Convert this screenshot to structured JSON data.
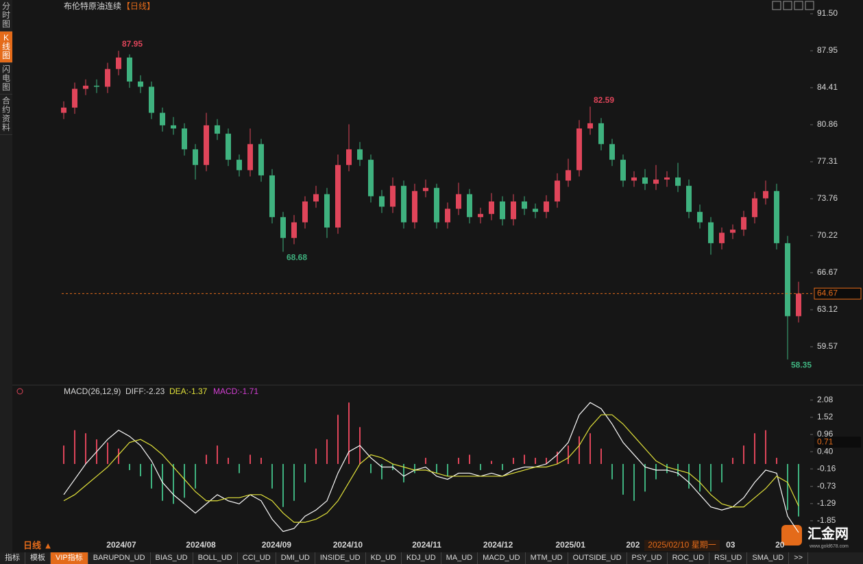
{
  "header": {
    "title": "布伦特原油连续",
    "period": "【日线】"
  },
  "sidebar": [
    "分时图",
    "K线图",
    "闪电图",
    "合约资料"
  ],
  "period_button": "日线 ▲",
  "tabs": [
    "指标",
    "模板",
    "VIP指标",
    "BARUPDN_UD",
    "BIAS_UD",
    "BOLL_UD",
    "CCI_UD",
    "DMI_UD",
    "INSIDE_UD",
    "KD_UD",
    "KDJ_UD",
    "MA_UD",
    "MACD_UD",
    "MTM_UD",
    "OUTSIDE_UD",
    "PSY_UD",
    "ROC_UD",
    "RSI_UD",
    "SMA_UD",
    ">>"
  ],
  "logo": {
    "name": "汇金网",
    "url": "www.gold678.com"
  },
  "cursor_date": "2025/02/10 星期一",
  "chart_data": [
    {
      "type": "candlestick",
      "up_color": "#e0455a",
      "down_color": "#3fb27f",
      "open": [
        82.0,
        82.5,
        84.3,
        84.6,
        84.5,
        86.2,
        87.3,
        85.0,
        84.5,
        82.0,
        80.8,
        80.5,
        78.5,
        77.0,
        80.8,
        80.0,
        77.5,
        76.5,
        79.0,
        76.0,
        72.0,
        70.0,
        71.5,
        73.5,
        74.2,
        71.0,
        77.0,
        78.5,
        77.5,
        74.0,
        73.0,
        75.0,
        71.5,
        74.5,
        74.8,
        71.5,
        72.8,
        74.2,
        72.0,
        72.3,
        73.5,
        71.8,
        73.5,
        72.8,
        72.5,
        73.5,
        75.5,
        76.5,
        80.5,
        81.0,
        79.0,
        77.5,
        75.5,
        75.8,
        75.2,
        75.6,
        75.8,
        75.0,
        72.5,
        71.5,
        69.5,
        70.5,
        70.8,
        72.0,
        73.8,
        74.5,
        69.5,
        62.5
      ],
      "high": [
        83.1,
        84.9,
        85.2,
        85.2,
        86.8,
        87.95,
        87.6,
        85.6,
        85.0,
        82.5,
        81.6,
        81.0,
        79.0,
        82.0,
        81.4,
        80.5,
        78.0,
        80.5,
        79.5,
        76.6,
        72.5,
        72.2,
        74.0,
        75.0,
        74.8,
        78.0,
        80.9,
        79.2,
        78.0,
        74.6,
        75.8,
        75.5,
        75.2,
        75.6,
        75.2,
        73.4,
        75.3,
        74.7,
        72.9,
        74.3,
        74.0,
        74.2,
        74.0,
        73.3,
        74.1,
        76.2,
        77.6,
        81.3,
        82.59,
        81.5,
        79.5,
        78.0,
        76.4,
        76.6,
        77.0,
        76.4,
        77.2,
        75.6,
        73.2,
        72.0,
        71.0,
        71.3,
        72.6,
        74.4,
        75.5,
        75.2,
        70.2,
        65.8
      ],
      "low": [
        81.4,
        81.9,
        83.7,
        83.9,
        83.9,
        85.6,
        84.4,
        83.9,
        81.4,
        80.2,
        79.9,
        77.9,
        75.6,
        76.4,
        79.4,
        76.9,
        75.9,
        75.9,
        75.4,
        71.4,
        68.68,
        69.4,
        70.9,
        72.9,
        70.0,
        70.4,
        76.4,
        76.9,
        73.4,
        72.4,
        72.4,
        70.9,
        70.9,
        73.9,
        70.9,
        70.9,
        72.2,
        71.4,
        71.4,
        71.7,
        71.2,
        71.2,
        72.2,
        71.9,
        71.9,
        72.9,
        74.9,
        75.9,
        79.9,
        78.4,
        76.9,
        74.9,
        74.9,
        74.6,
        74.6,
        74.9,
        74.4,
        71.9,
        70.9,
        68.4,
        68.9,
        69.9,
        70.2,
        71.4,
        73.2,
        68.9,
        58.35,
        61.9
      ],
      "close": [
        82.5,
        84.3,
        84.6,
        84.5,
        86.2,
        87.3,
        85.0,
        84.5,
        82.0,
        80.8,
        80.5,
        78.5,
        77.0,
        80.8,
        80.0,
        77.5,
        76.5,
        79.0,
        76.0,
        72.0,
        70.0,
        71.5,
        73.5,
        74.2,
        71.0,
        77.0,
        78.5,
        77.5,
        74.0,
        73.0,
        75.0,
        71.5,
        74.5,
        74.8,
        71.5,
        72.8,
        74.2,
        72.0,
        72.3,
        73.5,
        71.8,
        73.5,
        72.8,
        72.5,
        73.5,
        75.5,
        76.5,
        80.5,
        81.0,
        79.0,
        77.5,
        75.5,
        75.8,
        75.2,
        75.6,
        75.8,
        75.0,
        72.5,
        71.5,
        69.5,
        70.5,
        70.8,
        72.0,
        73.8,
        74.5,
        69.5,
        62.5,
        64.67
      ],
      "ylim": [
        56.02,
        92.16
      ],
      "yticks": [
        {
          "value": 91.5,
          "label": "91.50"
        },
        87.95,
        84.41,
        80.86,
        77.31,
        73.76,
        70.22,
        66.67,
        63.12,
        59.57
      ]
    },
    {
      "type": "macd",
      "legend": {
        "name": "MACD(26,12,9)",
        "diff": "DIFF:-2.23",
        "dea": "DEA:-1.37",
        "macd": "MACD:-1.71"
      },
      "diff_color": "#ffffff",
      "dea_color": "#e3e33a",
      "legend_macd_color": "#d53fd5",
      "diff": [
        -1.0,
        -0.5,
        0.0,
        0.4,
        0.8,
        1.1,
        0.9,
        0.6,
        0.1,
        -0.6,
        -1.0,
        -1.3,
        -1.6,
        -1.3,
        -1.0,
        -1.2,
        -1.3,
        -1.0,
        -1.2,
        -1.8,
        -2.2,
        -2.1,
        -1.7,
        -1.5,
        -1.2,
        -0.3,
        0.4,
        0.6,
        0.2,
        -0.1,
        -0.1,
        -0.4,
        -0.2,
        -0.1,
        -0.4,
        -0.5,
        -0.3,
        -0.3,
        -0.4,
        -0.3,
        -0.4,
        -0.2,
        -0.1,
        -0.1,
        0.0,
        0.3,
        0.7,
        1.6,
        2.0,
        1.8,
        1.3,
        0.7,
        0.3,
        -0.1,
        -0.2,
        -0.2,
        -0.3,
        -0.6,
        -1.0,
        -1.4,
        -1.5,
        -1.4,
        -1.1,
        -0.6,
        -0.2,
        -0.3,
        -1.7,
        -2.23
      ],
      "dea": [
        -1.2,
        -1.0,
        -0.7,
        -0.4,
        -0.1,
        0.3,
        0.7,
        0.8,
        0.6,
        0.3,
        -0.1,
        -0.5,
        -0.9,
        -1.2,
        -1.2,
        -1.1,
        -1.1,
        -1.0,
        -1.0,
        -1.2,
        -1.6,
        -1.9,
        -1.9,
        -1.8,
        -1.6,
        -1.2,
        -0.6,
        0.0,
        0.3,
        0.2,
        0.0,
        -0.1,
        -0.2,
        -0.2,
        -0.3,
        -0.4,
        -0.4,
        -0.4,
        -0.4,
        -0.4,
        -0.4,
        -0.3,
        -0.2,
        -0.1,
        -0.1,
        0.0,
        0.2,
        0.6,
        1.2,
        1.6,
        1.6,
        1.3,
        0.9,
        0.5,
        0.1,
        -0.1,
        -0.2,
        -0.3,
        -0.6,
        -1.0,
        -1.3,
        -1.4,
        -1.4,
        -1.1,
        -0.8,
        -0.4,
        -0.6,
        -1.37
      ],
      "macd": [
        0.6,
        1.1,
        1.0,
        0.8,
        0.7,
        0.5,
        -0.2,
        -0.4,
        -0.8,
        -1.2,
        -1.3,
        -1.1,
        -0.8,
        0.3,
        0.6,
        0.2,
        -0.3,
        0.3,
        0.2,
        -0.8,
        -1.4,
        -1.2,
        -0.6,
        0.5,
        0.8,
        1.6,
        2.0,
        1.2,
        -0.3,
        -0.5,
        -0.2,
        -0.6,
        -0.3,
        0.2,
        -0.3,
        -0.4,
        0.2,
        0.3,
        -0.2,
        0.1,
        -0.2,
        0.2,
        0.3,
        0.2,
        0.2,
        0.4,
        0.6,
        0.9,
        1.0,
        0.5,
        -0.5,
        -1.0,
        -1.2,
        -0.9,
        -0.5,
        -0.3,
        -0.4,
        -0.8,
        -0.9,
        -0.9,
        -0.6,
        0.2,
        0.6,
        1.0,
        1.1,
        0.2,
        -1.5,
        -1.71
      ],
      "cursor_value": 0.71,
      "ylim": [
        -2.41,
        2.5
      ],
      "yticks": [
        2.08,
        1.52,
        0.96,
        {
          "value": 0.4,
          "label": "0.40"
        },
        -0.16,
        -0.73,
        -1.29,
        -1.85
      ],
      "xticks": [
        {
          "value": 5.25,
          "label": "2024/07"
        },
        {
          "value": 12.5,
          "label": "2024/08"
        },
        {
          "value": 19.4,
          "label": "2024/09"
        },
        {
          "value": 25.9,
          "label": "2024/10"
        },
        {
          "value": 33.1,
          "label": "2024/11"
        },
        {
          "value": 39.6,
          "label": "2024/12"
        },
        {
          "value": 46.2,
          "label": "2025/01"
        },
        {
          "value": 51.9,
          "label": "202"
        },
        {
          "value": 60.8,
          "label": "03"
        },
        {
          "value": 65.3,
          "label": "20"
        }
      ]
    }
  ]
}
